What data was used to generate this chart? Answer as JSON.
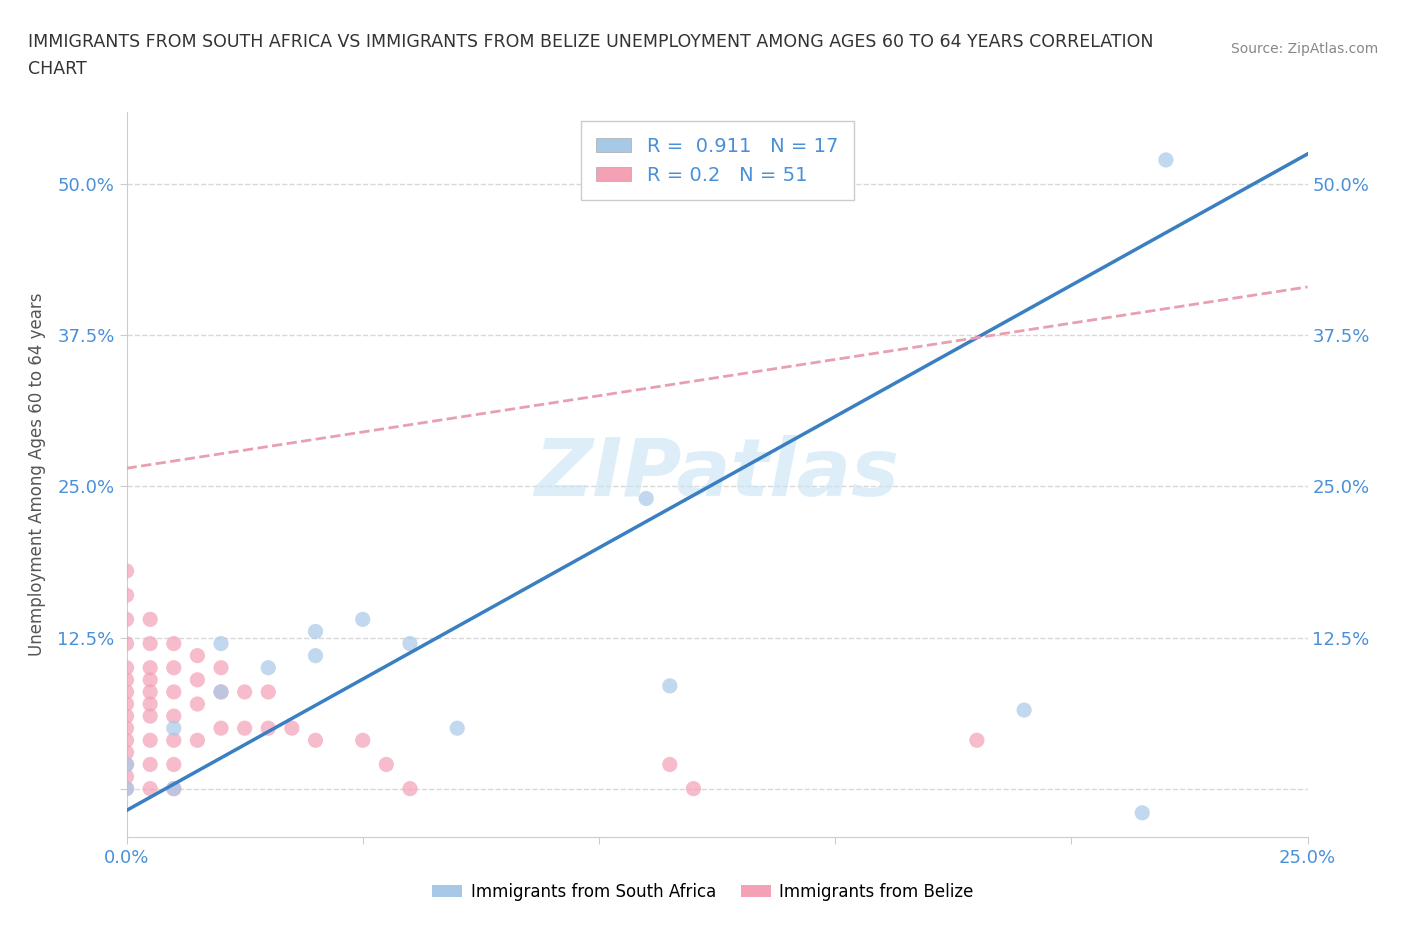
{
  "title_line1": "IMMIGRANTS FROM SOUTH AFRICA VS IMMIGRANTS FROM BELIZE UNEMPLOYMENT AMONG AGES 60 TO 64 YEARS CORRELATION",
  "title_line2": "CHART",
  "source": "Source: ZipAtlas.com",
  "ylabel": "Unemployment Among Ages 60 to 64 years",
  "xlim": [
    0.0,
    0.25
  ],
  "ylim": [
    -0.04,
    0.56
  ],
  "south_africa_color": "#a8c8e8",
  "belize_color": "#f4a0b5",
  "south_africa_R": 0.911,
  "south_africa_N": 17,
  "belize_R": 0.2,
  "belize_N": 51,
  "south_africa_line_color": "#3a7fc1",
  "belize_line_color": "#e8a0b0",
  "watermark": "ZIPatlas",
  "grid_color": "#d8d8d8",
  "grid_style": "--",
  "south_africa_line": [
    [
      0.0,
      -0.018
    ],
    [
      0.25,
      0.525
    ]
  ],
  "belize_line": [
    [
      0.0,
      0.265
    ],
    [
      0.25,
      0.415
    ]
  ],
  "south_africa_scatter": [
    [
      0.0,
      0.0
    ],
    [
      0.0,
      0.02
    ],
    [
      0.01,
      0.0
    ],
    [
      0.01,
      0.05
    ],
    [
      0.02,
      0.08
    ],
    [
      0.02,
      0.12
    ],
    [
      0.03,
      0.1
    ],
    [
      0.04,
      0.11
    ],
    [
      0.04,
      0.13
    ],
    [
      0.05,
      0.14
    ],
    [
      0.06,
      0.12
    ],
    [
      0.07,
      0.05
    ],
    [
      0.11,
      0.24
    ],
    [
      0.115,
      0.085
    ],
    [
      0.19,
      0.065
    ],
    [
      0.215,
      -0.02
    ],
    [
      0.22,
      0.52
    ]
  ],
  "belize_scatter": [
    [
      0.0,
      0.0
    ],
    [
      0.0,
      0.01
    ],
    [
      0.0,
      0.02
    ],
    [
      0.0,
      0.03
    ],
    [
      0.0,
      0.04
    ],
    [
      0.0,
      0.05
    ],
    [
      0.0,
      0.06
    ],
    [
      0.0,
      0.07
    ],
    [
      0.0,
      0.08
    ],
    [
      0.0,
      0.09
    ],
    [
      0.0,
      0.1
    ],
    [
      0.0,
      0.12
    ],
    [
      0.0,
      0.14
    ],
    [
      0.0,
      0.16
    ],
    [
      0.0,
      0.18
    ],
    [
      0.005,
      0.0
    ],
    [
      0.005,
      0.02
    ],
    [
      0.005,
      0.04
    ],
    [
      0.005,
      0.06
    ],
    [
      0.005,
      0.07
    ],
    [
      0.005,
      0.08
    ],
    [
      0.005,
      0.09
    ],
    [
      0.005,
      0.1
    ],
    [
      0.005,
      0.12
    ],
    [
      0.005,
      0.14
    ],
    [
      0.01,
      0.0
    ],
    [
      0.01,
      0.02
    ],
    [
      0.01,
      0.04
    ],
    [
      0.01,
      0.06
    ],
    [
      0.01,
      0.08
    ],
    [
      0.01,
      0.1
    ],
    [
      0.01,
      0.12
    ],
    [
      0.015,
      0.04
    ],
    [
      0.015,
      0.07
    ],
    [
      0.015,
      0.09
    ],
    [
      0.015,
      0.11
    ],
    [
      0.02,
      0.05
    ],
    [
      0.02,
      0.08
    ],
    [
      0.02,
      0.1
    ],
    [
      0.025,
      0.05
    ],
    [
      0.025,
      0.08
    ],
    [
      0.03,
      0.05
    ],
    [
      0.03,
      0.08
    ],
    [
      0.035,
      0.05
    ],
    [
      0.04,
      0.04
    ],
    [
      0.05,
      0.04
    ],
    [
      0.055,
      0.02
    ],
    [
      0.06,
      0.0
    ],
    [
      0.115,
      0.02
    ],
    [
      0.12,
      0.0
    ],
    [
      0.18,
      0.04
    ]
  ]
}
